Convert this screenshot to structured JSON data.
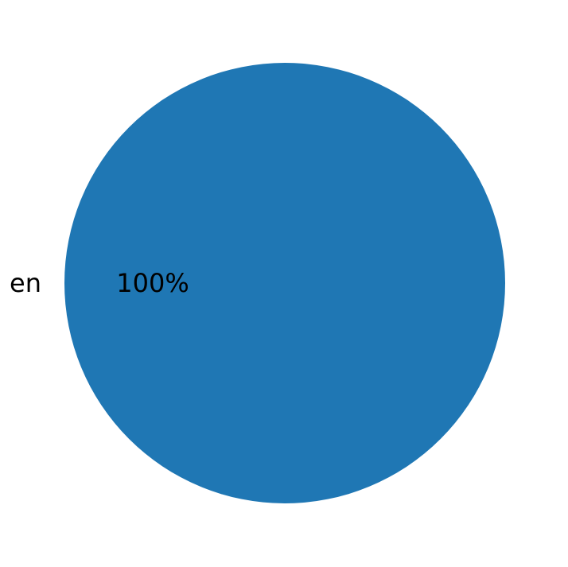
{
  "chart_data": {
    "type": "pie",
    "labels": [
      "en"
    ],
    "values": [
      100
    ],
    "autopct_labels": [
      "100%"
    ],
    "colors": [
      "#1f77b4"
    ],
    "title": ""
  }
}
